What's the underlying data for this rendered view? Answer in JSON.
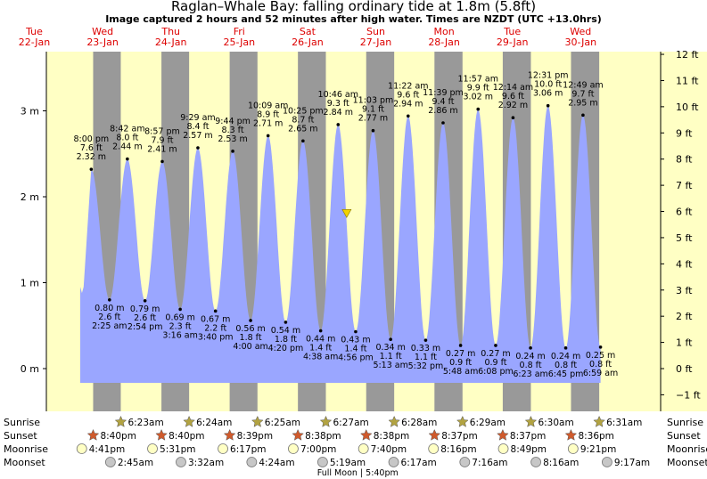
{
  "chart_data": {
    "type": "area",
    "title": "Raglan–Whale Bay: falling  ordinary tide at 1.8m (5.8ft)",
    "subtitle": "Image captured 2 hours and 52 minutes after high water. Times are NZDT (UTC +13.0hrs)",
    "y_left_unit_labels": [
      "0 m",
      "1 m",
      "2 m",
      "3 m"
    ],
    "y_left_ticks": [
      0,
      1,
      2,
      3
    ],
    "y_right_labels": [
      "−1 ft",
      "0 ft",
      "1 ft",
      "2 ft",
      "3 ft",
      "4 ft",
      "5 ft",
      "6 ft",
      "7 ft",
      "8 ft",
      "9 ft",
      "10 ft",
      "11 ft",
      "12 ft"
    ],
    "y_right_ticks_ft": [
      -1,
      0,
      1,
      2,
      3,
      4,
      5,
      6,
      7,
      8,
      9,
      10,
      11,
      12
    ],
    "ylim_m": [
      -0.35,
      3.7
    ],
    "x_range_hours": [
      0,
      192
    ],
    "days": [
      {
        "weekday": "Tue",
        "date": "22-Jan",
        "hour": 0
      },
      {
        "weekday": "Wed",
        "date": "23-Jan",
        "hour": 24
      },
      {
        "weekday": "Thu",
        "date": "24-Jan",
        "hour": 48
      },
      {
        "weekday": "Fri",
        "date": "25-Jan",
        "hour": 72
      },
      {
        "weekday": "Sat",
        "date": "26-Jan",
        "hour": 96
      },
      {
        "weekday": "Sun",
        "date": "27-Jan",
        "hour": 120
      },
      {
        "weekday": "Mon",
        "date": "28-Jan",
        "hour": 144
      },
      {
        "weekday": "Tue",
        "date": "29-Jan",
        "hour": 168
      },
      {
        "weekday": "Wed",
        "date": "30-Jan",
        "hour": 192
      }
    ],
    "extrema": [
      {
        "kind": "high",
        "time": "8:00 pm",
        "hour": 20.0,
        "m": 2.32,
        "ft": "7.6 ft",
        "m_label": "2.32 m"
      },
      {
        "kind": "low",
        "time": "2:25 am",
        "hour": 26.42,
        "m": 0.8,
        "ft": "2.6 ft",
        "m_label": "0.80 m"
      },
      {
        "kind": "high",
        "time": "8:42 am",
        "hour": 32.7,
        "m": 2.44,
        "ft": "8.0 ft",
        "m_label": "2.44 m"
      },
      {
        "kind": "low",
        "time": "2:54 pm",
        "hour": 38.9,
        "m": 0.79,
        "ft": "2.6 ft",
        "m_label": "0.79 m"
      },
      {
        "kind": "high",
        "time": "8:57 pm",
        "hour": 44.95,
        "m": 2.41,
        "ft": "7.9 ft",
        "m_label": "2.41 m"
      },
      {
        "kind": "low",
        "time": "3:16 am",
        "hour": 51.27,
        "m": 0.69,
        "ft": "2.3 ft",
        "m_label": "0.69 m"
      },
      {
        "kind": "high",
        "time": "9:29 am",
        "hour": 57.48,
        "m": 2.57,
        "ft": "8.4 ft",
        "m_label": "2.57 m"
      },
      {
        "kind": "low",
        "time": "3:40 pm",
        "hour": 63.67,
        "m": 0.67,
        "ft": "2.2 ft",
        "m_label": "0.67 m"
      },
      {
        "kind": "high",
        "time": "9:44 pm",
        "hour": 69.73,
        "m": 2.53,
        "ft": "8.3 ft",
        "m_label": "2.53 m"
      },
      {
        "kind": "low",
        "time": "4:00 am",
        "hour": 76.0,
        "m": 0.56,
        "ft": "1.8 ft",
        "m_label": "0.56 m"
      },
      {
        "kind": "high",
        "time": "10:09 am",
        "hour": 82.15,
        "m": 2.71,
        "ft": "8.9 ft",
        "m_label": "2.71 m"
      },
      {
        "kind": "low",
        "time": "4:20 pm",
        "hour": 88.33,
        "m": 0.54,
        "ft": "1.8 ft",
        "m_label": "0.54 m"
      },
      {
        "kind": "high",
        "time": "10:25 pm",
        "hour": 94.42,
        "m": 2.65,
        "ft": "8.7 ft",
        "m_label": "2.65 m"
      },
      {
        "kind": "low",
        "time": "4:38 am",
        "hour": 100.63,
        "m": 0.44,
        "ft": "1.4 ft",
        "m_label": "0.44 m"
      },
      {
        "kind": "high",
        "time": "10:46 am",
        "hour": 106.77,
        "m": 2.84,
        "ft": "9.3 ft",
        "m_label": "2.84 m"
      },
      {
        "kind": "low",
        "time": "4:56 pm",
        "hour": 112.93,
        "m": 0.43,
        "ft": "1.4 ft",
        "m_label": "0.43 m"
      },
      {
        "kind": "high",
        "time": "11:03 pm",
        "hour": 119.05,
        "m": 2.77,
        "ft": "9.1 ft",
        "m_label": "2.77 m"
      },
      {
        "kind": "low",
        "time": "5:13 am",
        "hour": 125.22,
        "m": 0.34,
        "ft": "1.1 ft",
        "m_label": "0.34 m"
      },
      {
        "kind": "high",
        "time": "11:22 am",
        "hour": 131.37,
        "m": 2.94,
        "ft": "9.6 ft",
        "m_label": "2.94 m"
      },
      {
        "kind": "low",
        "time": "5:32 pm",
        "hour": 137.53,
        "m": 0.33,
        "ft": "1.1 ft",
        "m_label": "0.33 m"
      },
      {
        "kind": "high",
        "time": "11:39 pm",
        "hour": 143.65,
        "m": 2.86,
        "ft": "9.4 ft",
        "m_label": "2.86 m"
      },
      {
        "kind": "low",
        "time": "5:48 am",
        "hour": 149.8,
        "m": 0.27,
        "ft": "0.9 ft",
        "m_label": "0.27 m"
      },
      {
        "kind": "high",
        "time": "11:57 am",
        "hour": 155.95,
        "m": 3.02,
        "ft": "9.9 ft",
        "m_label": "3.02 m"
      },
      {
        "kind": "low",
        "time": "6:08 pm",
        "hour": 162.13,
        "m": 0.27,
        "ft": "0.9 ft",
        "m_label": "0.27 m"
      },
      {
        "kind": "high",
        "time": "12:14 am",
        "hour": 168.23,
        "m": 2.92,
        "ft": "9.6 ft",
        "m_label": "2.92 m"
      },
      {
        "kind": "low",
        "time": "6:23 am",
        "hour": 174.38,
        "m": 0.24,
        "ft": "0.8 ft",
        "m_label": "0.24 m"
      },
      {
        "kind": "high",
        "time": "12:31 pm",
        "hour": 180.52,
        "m": 3.06,
        "ft": "10.0 ft",
        "m_label": "3.06 m"
      },
      {
        "kind": "low",
        "time": "6:45 pm",
        "hour": 186.75,
        "m": 0.24,
        "ft": "0.8 ft",
        "m_label": "0.24 m"
      },
      {
        "kind": "high",
        "time": "12:49 am",
        "hour": 192.82,
        "m": 2.95,
        "ft": "9.7 ft",
        "m_label": "2.95 m"
      },
      {
        "kind": "low",
        "time": "6:59 am",
        "hour": 198.98,
        "m": 0.25,
        "ft": "0.8 ft",
        "m_label": "0.25 m"
      }
    ],
    "current_marker": {
      "m": 1.8
    },
    "night_bands": [
      {
        "start": 20.67,
        "end": 30.38
      },
      {
        "start": 44.67,
        "end": 54.4
      },
      {
        "start": 68.65,
        "end": 78.42
      },
      {
        "start": 92.63,
        "end": 102.45
      },
      {
        "start": 116.63,
        "end": 126.47
      },
      {
        "start": 140.62,
        "end": 150.48
      },
      {
        "start": 164.62,
        "end": 174.5
      },
      {
        "start": 188.6,
        "end": 198.52
      }
    ]
  },
  "astro": {
    "row_labels": {
      "sunrise": "Sunrise",
      "sunset": "Sunset",
      "moonrise": "Moonrise",
      "moonset": "Moonset"
    },
    "sunrise": [
      {
        "hour": 30.38,
        "time": "6:23am"
      },
      {
        "hour": 54.4,
        "time": "6:24am"
      },
      {
        "hour": 78.42,
        "time": "6:25am"
      },
      {
        "hour": 102.45,
        "time": "6:27am"
      },
      {
        "hour": 126.47,
        "time": "6:28am"
      },
      {
        "hour": 150.48,
        "time": "6:29am"
      },
      {
        "hour": 174.5,
        "time": "6:30am"
      },
      {
        "hour": 198.52,
        "time": "6:31am"
      }
    ],
    "sunset": [
      {
        "hour": 20.67,
        "time": "8:40pm"
      },
      {
        "hour": 44.67,
        "time": "8:40pm"
      },
      {
        "hour": 68.65,
        "time": "8:39pm"
      },
      {
        "hour": 92.63,
        "time": "8:38pm"
      },
      {
        "hour": 116.63,
        "time": "8:38pm"
      },
      {
        "hour": 140.62,
        "time": "8:37pm"
      },
      {
        "hour": 164.62,
        "time": "8:37pm"
      },
      {
        "hour": 188.6,
        "time": "8:36pm"
      }
    ],
    "moonrise": [
      {
        "hour": 16.68,
        "time": "4:41pm"
      },
      {
        "hour": 41.52,
        "time": "5:31pm"
      },
      {
        "hour": 66.28,
        "time": "6:17pm"
      },
      {
        "hour": 91.0,
        "time": "7:00pm"
      },
      {
        "hour": 115.67,
        "time": "7:40pm"
      },
      {
        "hour": 140.27,
        "time": "8:16pm"
      },
      {
        "hour": 164.82,
        "time": "8:49pm"
      },
      {
        "hour": 189.35,
        "time": "9:21pm"
      }
    ],
    "moonset": [
      {
        "hour": 26.75,
        "time": "2:45am"
      },
      {
        "hour": 51.53,
        "time": "3:32am"
      },
      {
        "hour": 76.4,
        "time": "4:24am"
      },
      {
        "hour": 101.32,
        "time": "5:19am"
      },
      {
        "hour": 126.28,
        "time": "6:17am"
      },
      {
        "hour": 151.27,
        "time": "7:16am"
      },
      {
        "hour": 176.27,
        "time": "8:16am"
      },
      {
        "hour": 201.28,
        "time": "9:17am"
      }
    ],
    "full_moon": {
      "label": "Full Moon",
      "time": "5:40pm",
      "hour": 113.67
    }
  },
  "colors": {
    "day_bg": "#ffffc4",
    "night_band": "#999999",
    "water": "#9aa6ff",
    "axis_bg": "#ffffc4",
    "day_text": "#dd0000",
    "sun_star": "#b2a341",
    "sunset_star": "#cf5a2c",
    "moonrise": "#ffffc4",
    "moonset": "#c7c7c7"
  }
}
